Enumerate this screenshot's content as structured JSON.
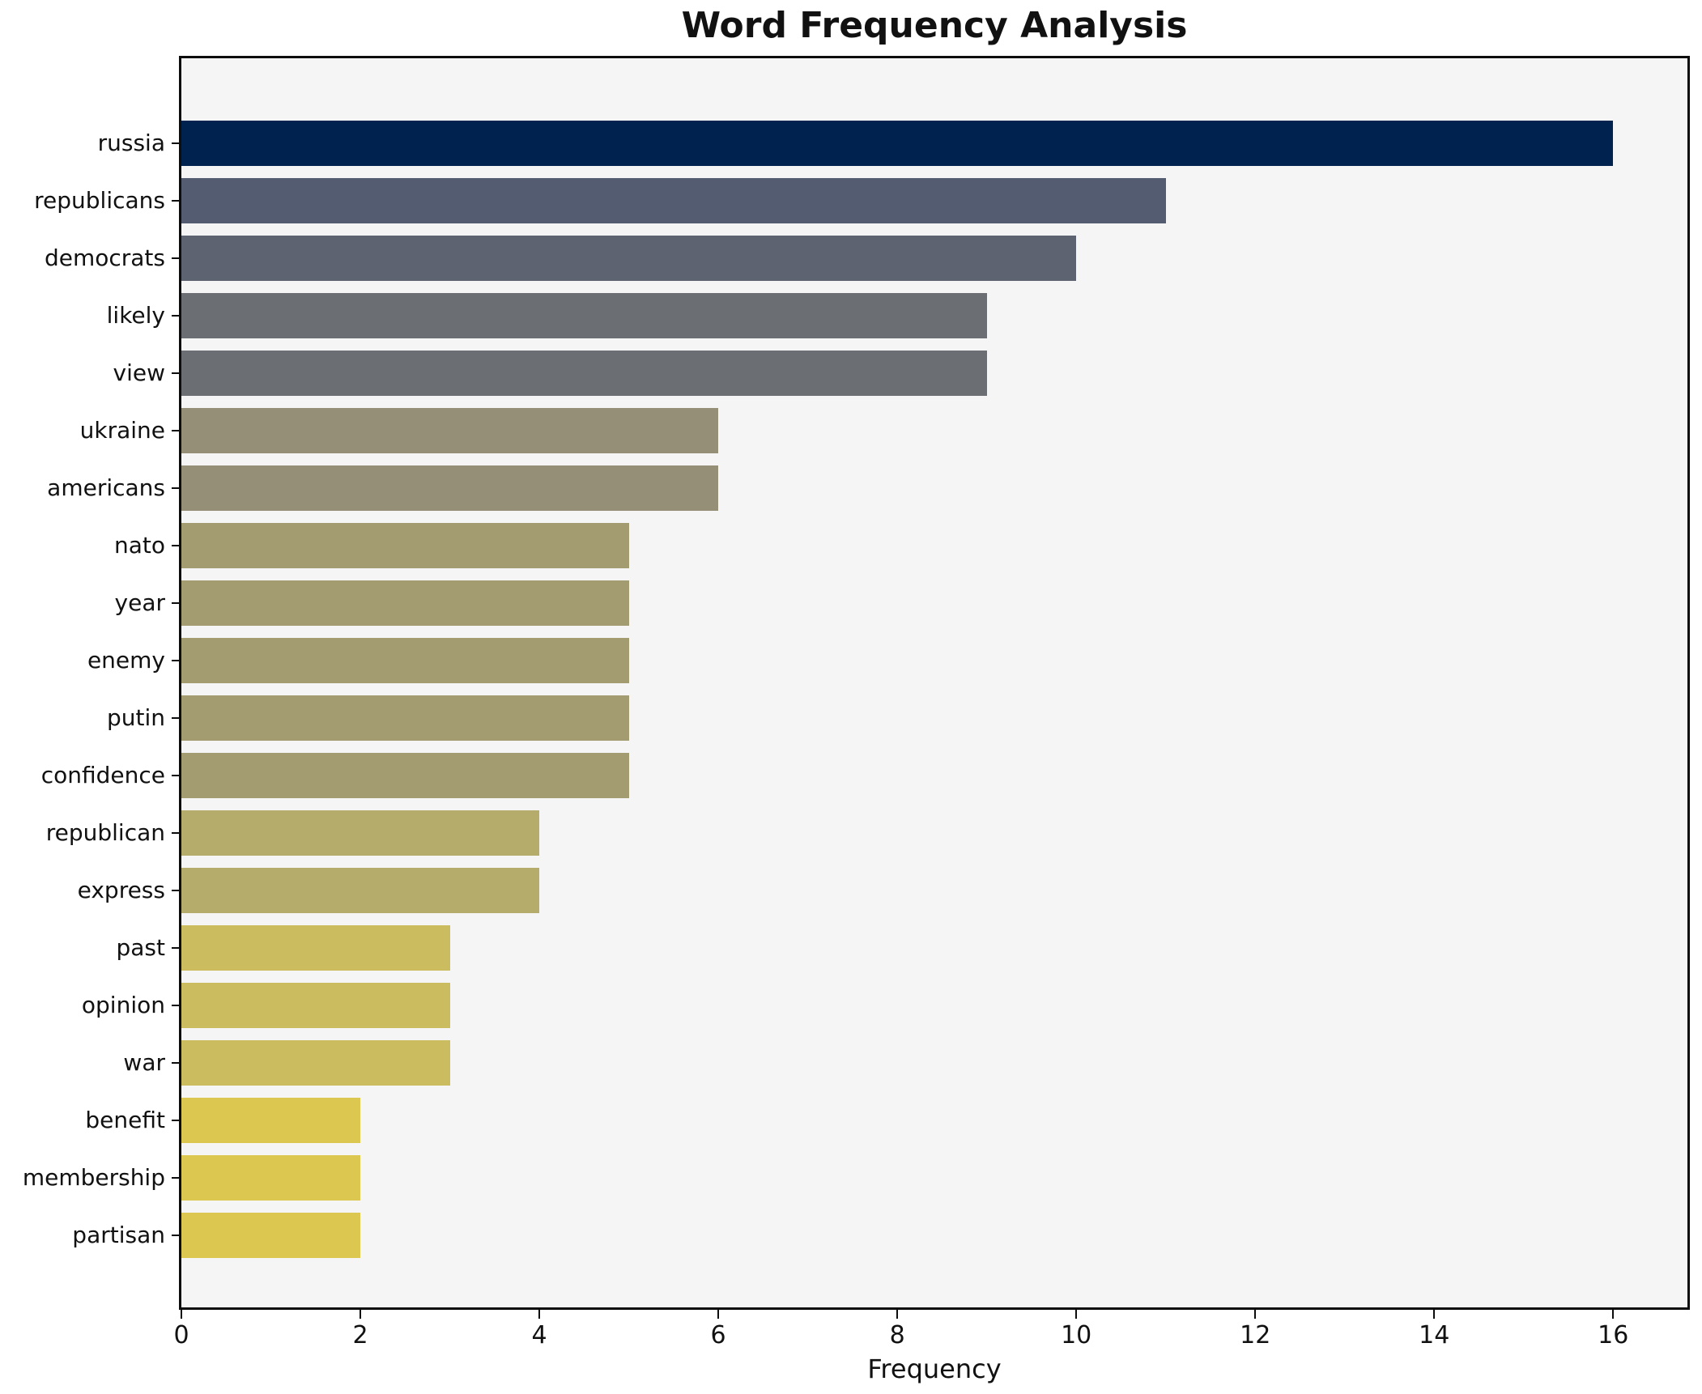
{
  "figure": {
    "background": "#ffffff",
    "plot_background": "#f5f5f6",
    "spine_color": "#0d0d0d",
    "text_color": "#111111"
  },
  "chart_data": {
    "type": "bar",
    "orientation": "horizontal",
    "title": "Word Frequency Analysis",
    "xlabel": "Frequency",
    "ylabel": "",
    "grid": false,
    "legend": false,
    "xlim": [
      0,
      16.83
    ],
    "xticks": [
      0,
      2,
      4,
      6,
      8,
      10,
      12,
      14,
      16
    ],
    "categories": [
      "russia",
      "republicans",
      "democrats",
      "likely",
      "view",
      "ukraine",
      "americans",
      "nato",
      "year",
      "enemy",
      "putin",
      "confidence",
      "republican",
      "express",
      "past",
      "opinion",
      "war",
      "benefit",
      "membership",
      "partisan"
    ],
    "values": [
      16,
      11,
      10,
      9,
      9,
      6,
      6,
      5,
      5,
      5,
      5,
      5,
      4,
      4,
      3,
      3,
      3,
      2,
      2,
      2
    ],
    "bar_colors": [
      "#00224e",
      "#545c72",
      "#5d6370",
      "#6b6e72",
      "#6b6e72",
      "#958f77",
      "#958f77",
      "#a49c71",
      "#a49c71",
      "#a49c71",
      "#a49c71",
      "#a49c71",
      "#b5ab6b",
      "#b5ab6b",
      "#ccbc60",
      "#ccbc60",
      "#ccbc60",
      "#dcc851",
      "#dcc851",
      "#dcc851"
    ],
    "colormap": "cividis-inverted"
  }
}
